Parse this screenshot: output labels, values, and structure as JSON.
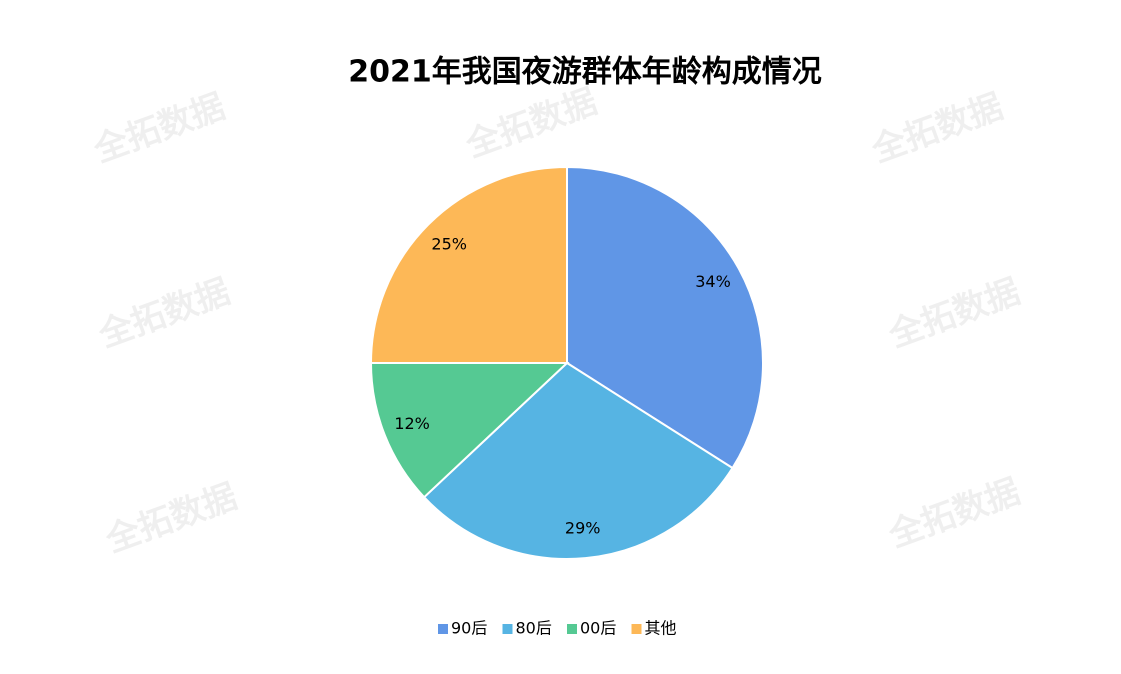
{
  "watermark": "全拓数据",
  "chart_data": {
    "type": "pie",
    "title": "2021年我国夜游群体年龄构成情况",
    "categories": [
      "90后",
      "80后",
      "00后",
      "其他"
    ],
    "values": [
      34,
      29,
      12,
      25
    ],
    "value_labels": [
      "34%",
      "29%",
      "12%",
      "25%"
    ],
    "colors": [
      "#6096e6",
      "#56b4e3",
      "#55c993",
      "#fdb857"
    ],
    "legend": "bottom"
  }
}
